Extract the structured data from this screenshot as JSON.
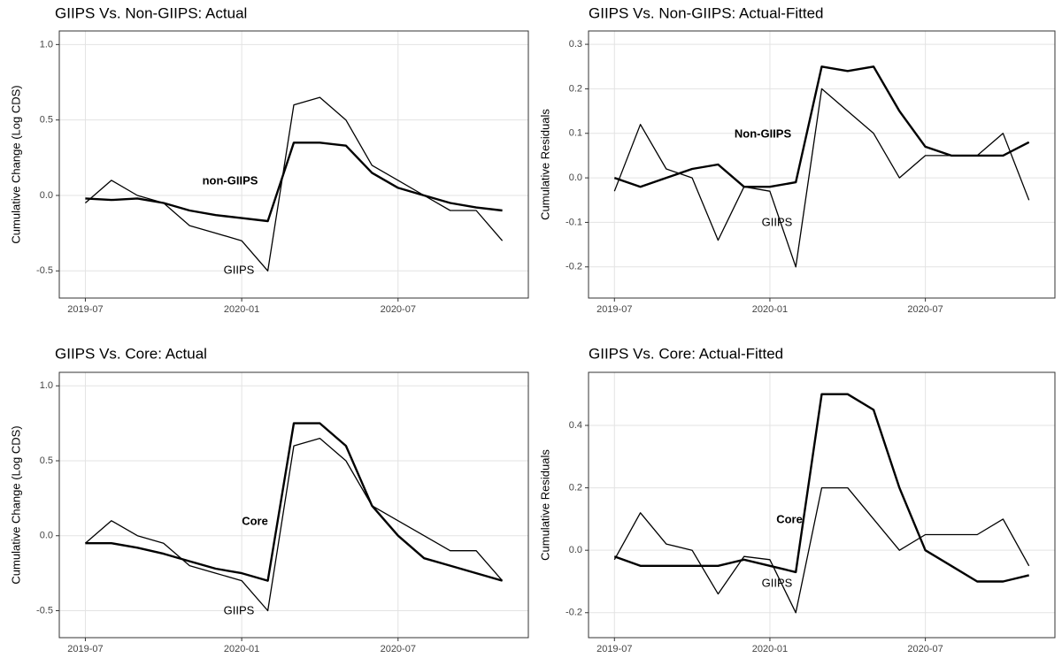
{
  "chart_data": [
    {
      "type": "line",
      "title": "GIIPS Vs. Non-GIIPS: Actual",
      "ylabel": "Cumulative Change (Log CDS)",
      "x": [
        "2019-07",
        "2019-08",
        "2019-09",
        "2019-10",
        "2019-11",
        "2019-12",
        "2020-01",
        "2020-02",
        "2020-03",
        "2020-04",
        "2020-05",
        "2020-06",
        "2020-07",
        "2020-08",
        "2020-09",
        "2020-10",
        "2020-11"
      ],
      "series": [
        {
          "name": "GIIPS",
          "color": "#000000",
          "values": [
            -0.05,
            0.1,
            0.0,
            -0.05,
            -0.2,
            -0.25,
            -0.3,
            -0.5,
            0.6,
            0.65,
            0.5,
            0.2,
            0.1,
            0.0,
            -0.1,
            -0.1,
            -0.3
          ]
        },
        {
          "name": "non-GIIPS",
          "color": "#000000",
          "values": [
            -0.02,
            -0.03,
            -0.02,
            -0.05,
            -0.1,
            -0.13,
            -0.15,
            -0.17,
            0.35,
            0.35,
            0.33,
            0.15,
            0.05,
            0.0,
            -0.05,
            -0.08,
            -0.1
          ]
        }
      ],
      "xlim": [
        "2019-06",
        "2020-12"
      ],
      "xticks": [
        "2019-07",
        "2020-01",
        "2020-07"
      ],
      "ylim": [
        -0.68,
        1.09
      ],
      "yticks": [
        -0.5,
        {
          "value": 0,
          "label": "0.0"
        },
        0.5,
        {
          "value": 1,
          "label": "1.0"
        }
      ],
      "grid": true
    },
    {
      "type": "line",
      "title": "GIIPS Vs. Non-GIIPS: Actual-Fitted",
      "ylabel": "Cumulative Residuals",
      "x": [
        "2019-07",
        "2019-08",
        "2019-09",
        "2019-10",
        "2019-11",
        "2019-12",
        "2020-01",
        "2020-02",
        "2020-03",
        "2020-04",
        "2020-05",
        "2020-06",
        "2020-07",
        "2020-08",
        "2020-09",
        "2020-10",
        "2020-11"
      ],
      "series": [
        {
          "name": "GIIPS",
          "color": "#000000",
          "values": [
            -0.03,
            0.12,
            0.02,
            0.0,
            -0.14,
            -0.02,
            -0.03,
            -0.2,
            0.2,
            0.15,
            0.1,
            0.0,
            0.05,
            0.05,
            0.05,
            0.1,
            -0.05
          ]
        },
        {
          "name": "Non-GIIPS",
          "color": "#000000",
          "values": [
            0.0,
            -0.02,
            0.0,
            0.02,
            0.03,
            -0.02,
            -0.02,
            -0.01,
            0.25,
            0.24,
            0.25,
            0.15,
            0.07,
            0.05,
            0.05,
            0.05,
            0.08
          ]
        }
      ],
      "xlim": [
        "2019-06",
        "2020-12"
      ],
      "xticks": [
        "2019-07",
        "2020-01",
        "2020-07"
      ],
      "ylim": [
        -0.27,
        0.33
      ],
      "yticks": [
        -0.2,
        -0.1,
        {
          "value": 0,
          "label": "0.0"
        },
        0.1,
        0.2,
        0.3
      ],
      "grid": true
    },
    {
      "type": "line",
      "title": "GIIPS Vs. Core: Actual",
      "ylabel": "Cumulative Change (Log CDS)",
      "x": [
        "2019-07",
        "2019-08",
        "2019-09",
        "2019-10",
        "2019-11",
        "2019-12",
        "2020-01",
        "2020-02",
        "2020-03",
        "2020-04",
        "2020-05",
        "2020-06",
        "2020-07",
        "2020-08",
        "2020-09",
        "2020-10",
        "2020-11"
      ],
      "series": [
        {
          "name": "GIIPS",
          "color": "#000000",
          "values": [
            -0.05,
            0.1,
            0.0,
            -0.05,
            -0.2,
            -0.25,
            -0.3,
            -0.5,
            0.6,
            0.65,
            0.5,
            0.2,
            0.1,
            0.0,
            -0.1,
            -0.1,
            -0.3
          ]
        },
        {
          "name": "Core",
          "color": "#000000",
          "values": [
            -0.05,
            -0.05,
            -0.08,
            -0.12,
            -0.17,
            -0.22,
            -0.25,
            -0.3,
            0.75,
            0.75,
            0.6,
            0.2,
            0.0,
            -0.15,
            -0.2,
            -0.25,
            -0.3
          ]
        }
      ],
      "xlim": [
        "2019-06",
        "2020-12"
      ],
      "xticks": [
        "2019-07",
        "2020-01",
        "2020-07"
      ],
      "ylim": [
        -0.68,
        1.09
      ],
      "yticks": [
        -0.5,
        {
          "value": 0,
          "label": "0.0"
        },
        0.5,
        {
          "value": 1,
          "label": "1.0"
        }
      ],
      "grid": true
    },
    {
      "type": "line",
      "title": "GIIPS Vs. Core: Actual-Fitted",
      "ylabel": "Cumulative Residuals",
      "x": [
        "2019-07",
        "2019-08",
        "2019-09",
        "2019-10",
        "2019-11",
        "2019-12",
        "2020-01",
        "2020-02",
        "2020-03",
        "2020-04",
        "2020-05",
        "2020-06",
        "2020-07",
        "2020-08",
        "2020-09",
        "2020-10",
        "2020-11"
      ],
      "series": [
        {
          "name": "GIIPS",
          "color": "#000000",
          "values": [
            -0.03,
            0.12,
            0.02,
            0.0,
            -0.14,
            -0.02,
            -0.03,
            -0.2,
            0.2,
            0.2,
            0.1,
            0.0,
            0.05,
            0.05,
            0.05,
            0.1,
            -0.05
          ]
        },
        {
          "name": "Core",
          "color": "#000000",
          "values": [
            -0.02,
            -0.05,
            -0.05,
            -0.05,
            -0.05,
            -0.03,
            -0.05,
            -0.07,
            0.5,
            0.5,
            0.45,
            0.2,
            0.0,
            -0.05,
            -0.1,
            -0.1,
            -0.08
          ]
        }
      ],
      "xlim": [
        "2019-06",
        "2020-12"
      ],
      "xticks": [
        "2019-07",
        "2020-01",
        "2020-07"
      ],
      "ylim": [
        -0.28,
        0.57
      ],
      "yticks": [
        -0.2,
        {
          "value": 0,
          "label": "0.0"
        },
        0.2,
        0.4
      ],
      "grid": true
    }
  ]
}
